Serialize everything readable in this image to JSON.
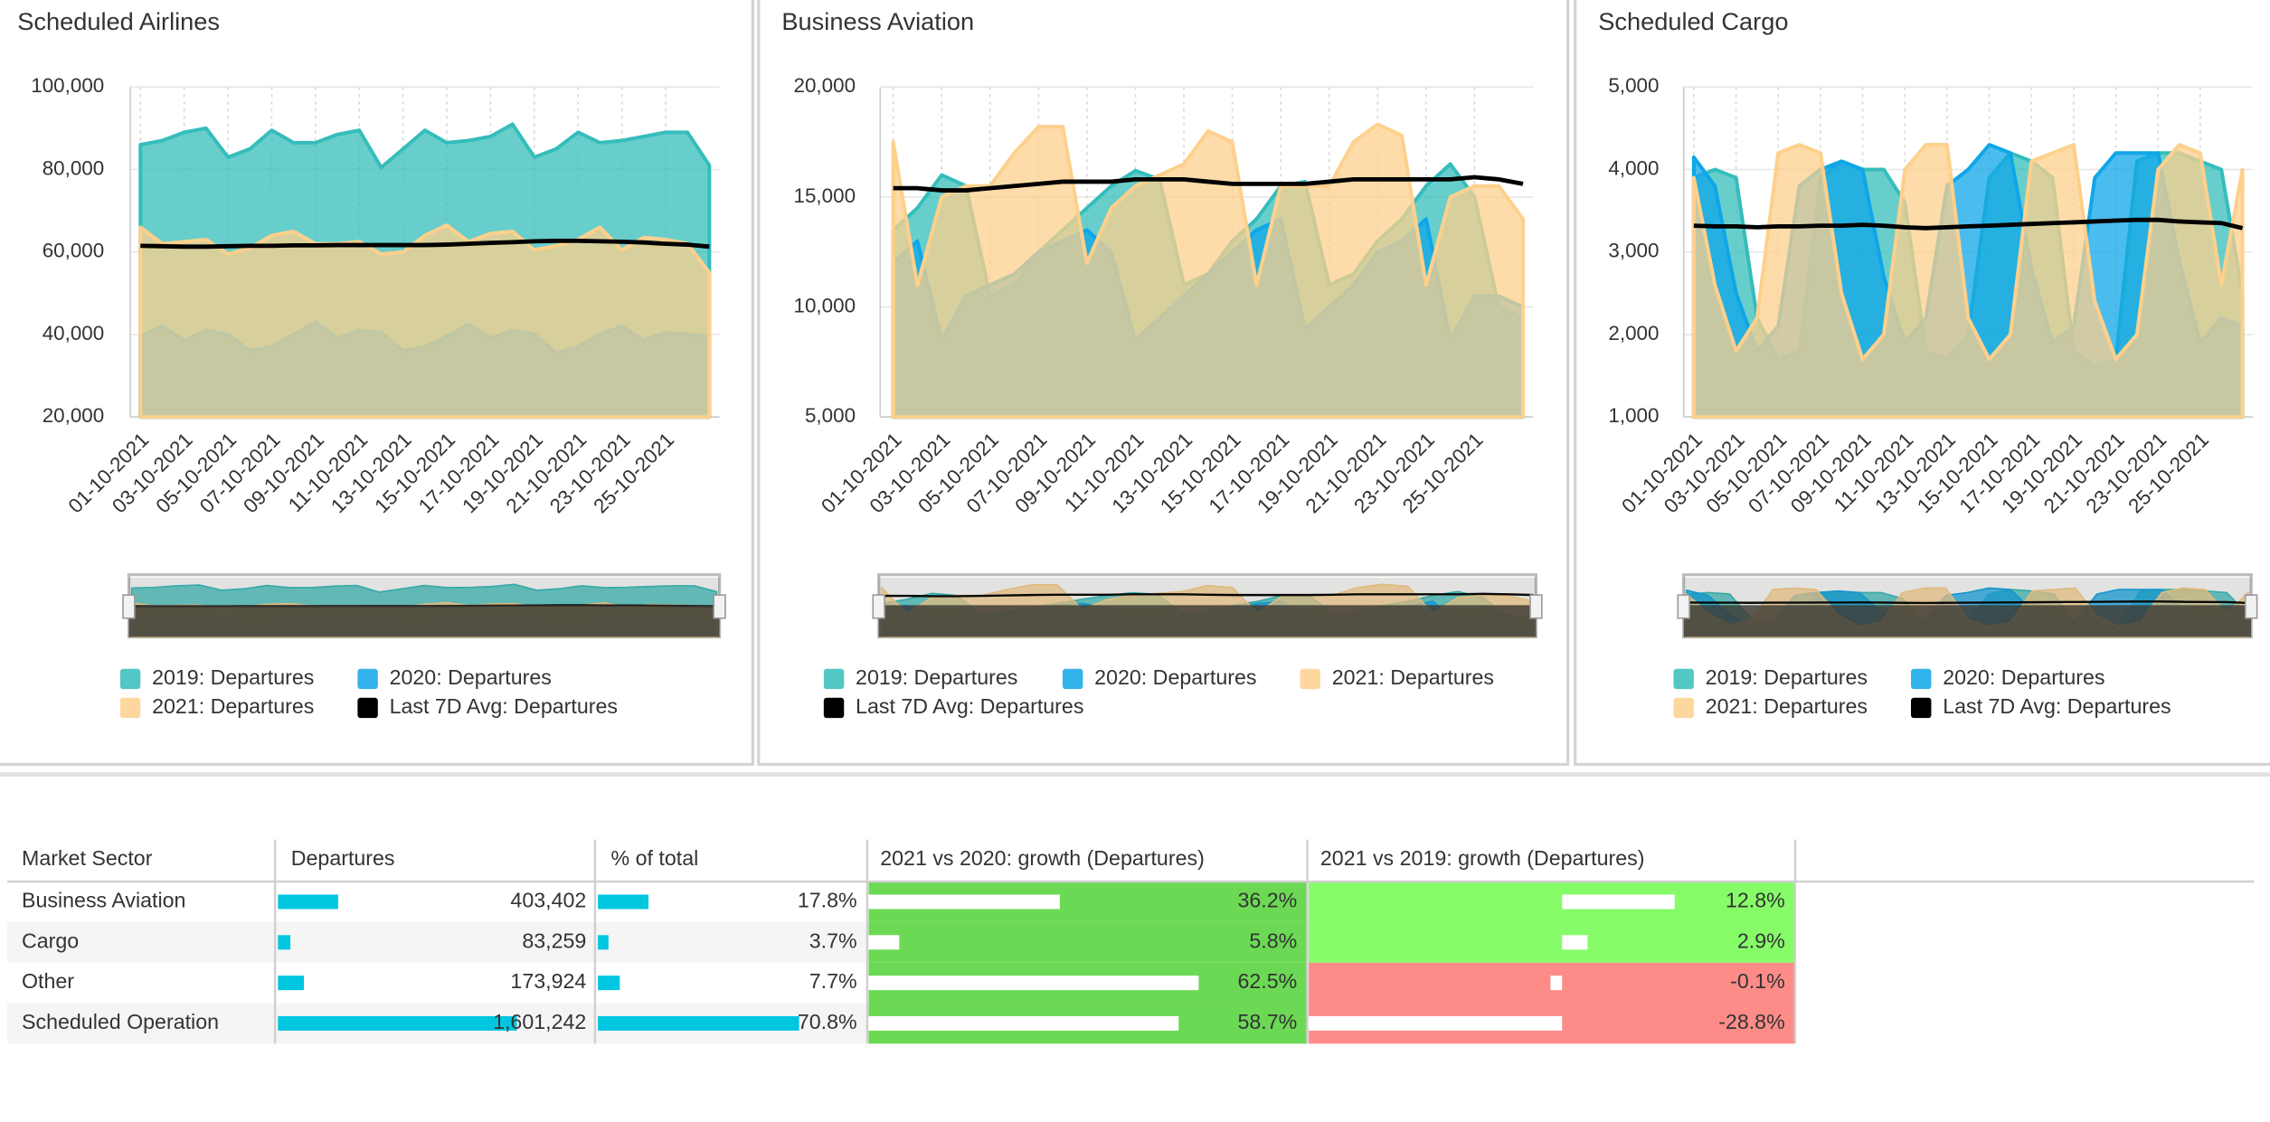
{
  "chart_data": [
    {
      "type": "area",
      "title": "Scheduled Airlines",
      "categories": [
        "01-10-2021",
        null,
        "03-10-2021",
        null,
        "05-10-2021",
        null,
        "07-10-2021",
        null,
        "09-10-2021",
        null,
        "11-10-2021",
        null,
        "13-10-2021",
        null,
        "15-10-2021",
        null,
        "17-10-2021",
        null,
        "19-10-2021",
        null,
        "21-10-2021",
        null,
        "23-10-2021",
        null,
        "25-10-2021",
        null,
        null
      ],
      "ylim": [
        20000,
        100000
      ],
      "yticks": [
        {
          "value": 20000,
          "label": "20,000"
        },
        {
          "value": 40000,
          "label": "40,000"
        },
        {
          "value": 60000,
          "label": "60,000"
        },
        {
          "value": 80000,
          "label": "80,000"
        },
        {
          "value": 100000,
          "label": "100,000"
        }
      ],
      "grid": true,
      "series": [
        {
          "name": "2019: Departures",
          "color": "#35bdbb",
          "values": [
            86000,
            87000,
            89000,
            90000,
            83000,
            85000,
            89500,
            86500,
            86500,
            88500,
            89500,
            80500,
            85000,
            89500,
            86500,
            87000,
            88000,
            91000,
            83000,
            85000,
            89000,
            86500,
            87000,
            88000,
            89000,
            89000,
            81000
          ]
        },
        {
          "name": "2020: Departures",
          "color": "#0fa6e8",
          "values": [
            39500,
            42000,
            38500,
            41000,
            40000,
            36000,
            37000,
            40000,
            43000,
            39000,
            41000,
            40500,
            36000,
            37000,
            39500,
            42500,
            39000,
            41000,
            40000,
            35500,
            37000,
            40000,
            42000,
            38500,
            40500,
            40000,
            39500
          ]
        },
        {
          "name": "2021: Departures",
          "color": "#fdd08c",
          "values": [
            66000,
            62000,
            62500,
            63000,
            59500,
            61000,
            64000,
            65000,
            62000,
            62000,
            62500,
            59500,
            60000,
            64000,
            66500,
            62500,
            64500,
            65000,
            60500,
            61500,
            63000,
            66000,
            60500,
            63500,
            63000,
            62000,
            55000
          ]
        },
        {
          "name": "Last 7D Avg: Departures",
          "color": "#000000",
          "type": "line",
          "values": [
            61500,
            61400,
            61300,
            61300,
            61400,
            61500,
            61500,
            61600,
            61600,
            61700,
            61700,
            61700,
            61700,
            61700,
            61800,
            62000,
            62200,
            62400,
            62600,
            62700,
            62700,
            62600,
            62500,
            62300,
            62000,
            61800,
            61300
          ]
        }
      ]
    },
    {
      "type": "area",
      "title": "Business Aviation",
      "categories": [
        "01-10-2021",
        null,
        "03-10-2021",
        null,
        "05-10-2021",
        null,
        "07-10-2021",
        null,
        "09-10-2021",
        null,
        "11-10-2021",
        null,
        "13-10-2021",
        null,
        "15-10-2021",
        null,
        "17-10-2021",
        null,
        "19-10-2021",
        null,
        "21-10-2021",
        null,
        "23-10-2021",
        null,
        "25-10-2021",
        null,
        null
      ],
      "ylim": [
        5000,
        20000
      ],
      "yticks": [
        {
          "value": 5000,
          "label": "5,000"
        },
        {
          "value": 10000,
          "label": "10,000"
        },
        {
          "value": 15000,
          "label": "15,000"
        },
        {
          "value": 20000,
          "label": "20,000"
        }
      ],
      "grid": true,
      "series": [
        {
          "name": "2019: Departures",
          "color": "#35bdbb",
          "values": [
            13500,
            14500,
            16000,
            15500,
            10500,
            11000,
            12500,
            13500,
            14500,
            15500,
            16200,
            15800,
            11000,
            11500,
            13000,
            14000,
            15500,
            15700,
            11000,
            11500,
            13000,
            14000,
            15500,
            16500,
            15000,
            10000,
            9500
          ]
        },
        {
          "name": "2020: Departures",
          "color": "#0fa6e8",
          "values": [
            12000,
            13000,
            8500,
            10500,
            11000,
            11500,
            12500,
            13000,
            13500,
            12500,
            8500,
            9500,
            10500,
            11500,
            12500,
            13500,
            14000,
            9000,
            10000,
            11000,
            12500,
            13000,
            14000,
            8500,
            10500,
            10500,
            10000
          ]
        },
        {
          "name": "2021: Departures",
          "color": "#fdd08c",
          "values": [
            17500,
            11000,
            15000,
            15500,
            15500,
            17000,
            18200,
            18200,
            12000,
            14500,
            15500,
            16000,
            16500,
            18000,
            17500,
            11000,
            15500,
            15500,
            15500,
            17500,
            18300,
            17800,
            11000,
            15000,
            15500,
            15500,
            14000
          ]
        },
        {
          "name": "Last 7D Avg: Departures",
          "color": "#000000",
          "type": "line",
          "values": [
            15400,
            15400,
            15300,
            15300,
            15400,
            15500,
            15600,
            15700,
            15700,
            15700,
            15800,
            15800,
            15800,
            15700,
            15600,
            15600,
            15600,
            15600,
            15700,
            15800,
            15800,
            15800,
            15800,
            15800,
            15900,
            15800,
            15600
          ]
        }
      ]
    },
    {
      "type": "area",
      "title": "Scheduled Cargo",
      "categories": [
        "01-10-2021",
        null,
        "03-10-2021",
        null,
        "05-10-2021",
        null,
        "07-10-2021",
        null,
        "09-10-2021",
        null,
        "11-10-2021",
        null,
        "13-10-2021",
        null,
        "15-10-2021",
        null,
        "17-10-2021",
        null,
        "19-10-2021",
        null,
        "21-10-2021",
        null,
        "23-10-2021",
        null,
        "25-10-2021",
        null,
        null
      ],
      "ylim": [
        1000,
        5000
      ],
      "yticks": [
        {
          "value": 1000,
          "label": "1,000"
        },
        {
          "value": 2000,
          "label": "2,000"
        },
        {
          "value": 3000,
          "label": "3,000"
        },
        {
          "value": 4000,
          "label": "4,000"
        },
        {
          "value": 5000,
          "label": "5,000"
        }
      ],
      "grid": true,
      "series": [
        {
          "name": "2019: Departures",
          "color": "#35bdbb",
          "values": [
            3900,
            4000,
            3900,
            2200,
            1700,
            1800,
            3900,
            4100,
            4000,
            4000,
            3600,
            1800,
            1700,
            2000,
            3900,
            4200,
            4100,
            3900,
            1800,
            1600,
            1700,
            4100,
            4200,
            4200,
            4100,
            4000,
            2500
          ]
        },
        {
          "name": "2020: Departures",
          "color": "#0fa6e8",
          "values": [
            4150,
            3800,
            2500,
            1800,
            2100,
            3800,
            4000,
            4100,
            4000,
            2700,
            1900,
            2200,
            3800,
            4000,
            4300,
            4200,
            2800,
            1900,
            2100,
            3900,
            4200,
            4200,
            4200,
            2900,
            1900,
            2200,
            2100
          ]
        },
        {
          "name": "2021: Departures",
          "color": "#fdd08c",
          "values": [
            3900,
            2600,
            1800,
            2200,
            4200,
            4300,
            4200,
            2500,
            1700,
            2000,
            4000,
            4300,
            4300,
            2200,
            1700,
            2000,
            4100,
            4200,
            4300,
            2400,
            1700,
            2000,
            4000,
            4300,
            4200,
            2600,
            4000
          ]
        },
        {
          "name": "Last 7D Avg: Departures",
          "color": "#000000",
          "type": "line",
          "values": [
            3320,
            3310,
            3310,
            3300,
            3310,
            3310,
            3320,
            3320,
            3330,
            3320,
            3300,
            3290,
            3300,
            3310,
            3320,
            3330,
            3340,
            3350,
            3360,
            3370,
            3380,
            3390,
            3390,
            3370,
            3360,
            3350,
            3290
          ]
        }
      ]
    }
  ],
  "table": {
    "columns": [
      "Market Sector",
      "Departures",
      "% of total",
      "2021 vs 2020: growth (Departures)",
      "2021 vs 2019: growth (Departures)"
    ],
    "rows": [
      {
        "sector": "Business Aviation",
        "departures": {
          "value": 403402,
          "label": "403,402"
        },
        "share": {
          "value": 17.8,
          "label": "17.8%"
        },
        "growth_2020": {
          "value": 36.2,
          "label": "36.2%"
        },
        "growth_2019": {
          "value": 12.8,
          "label": "12.8%"
        }
      },
      {
        "sector": "Cargo",
        "departures": {
          "value": 83259,
          "label": "83,259"
        },
        "share": {
          "value": 3.7,
          "label": "3.7%"
        },
        "growth_2020": {
          "value": 5.8,
          "label": "5.8%"
        },
        "growth_2019": {
          "value": 2.9,
          "label": "2.9%"
        }
      },
      {
        "sector": "Other",
        "departures": {
          "value": 173924,
          "label": "173,924"
        },
        "share": {
          "value": 7.7,
          "label": "7.7%"
        },
        "growth_2020": {
          "value": 62.5,
          "label": "62.5%"
        },
        "growth_2019": {
          "value": -0.1,
          "label": "-0.1%"
        }
      },
      {
        "sector": "Scheduled Operation",
        "departures": {
          "value": 1601242,
          "label": "1,601,242"
        },
        "share": {
          "value": 70.8,
          "label": "70.8%"
        },
        "growth_2020": {
          "value": 58.7,
          "label": "58.7%"
        },
        "growth_2019": {
          "value": -28.8,
          "label": "-28.8%"
        }
      }
    ]
  }
}
